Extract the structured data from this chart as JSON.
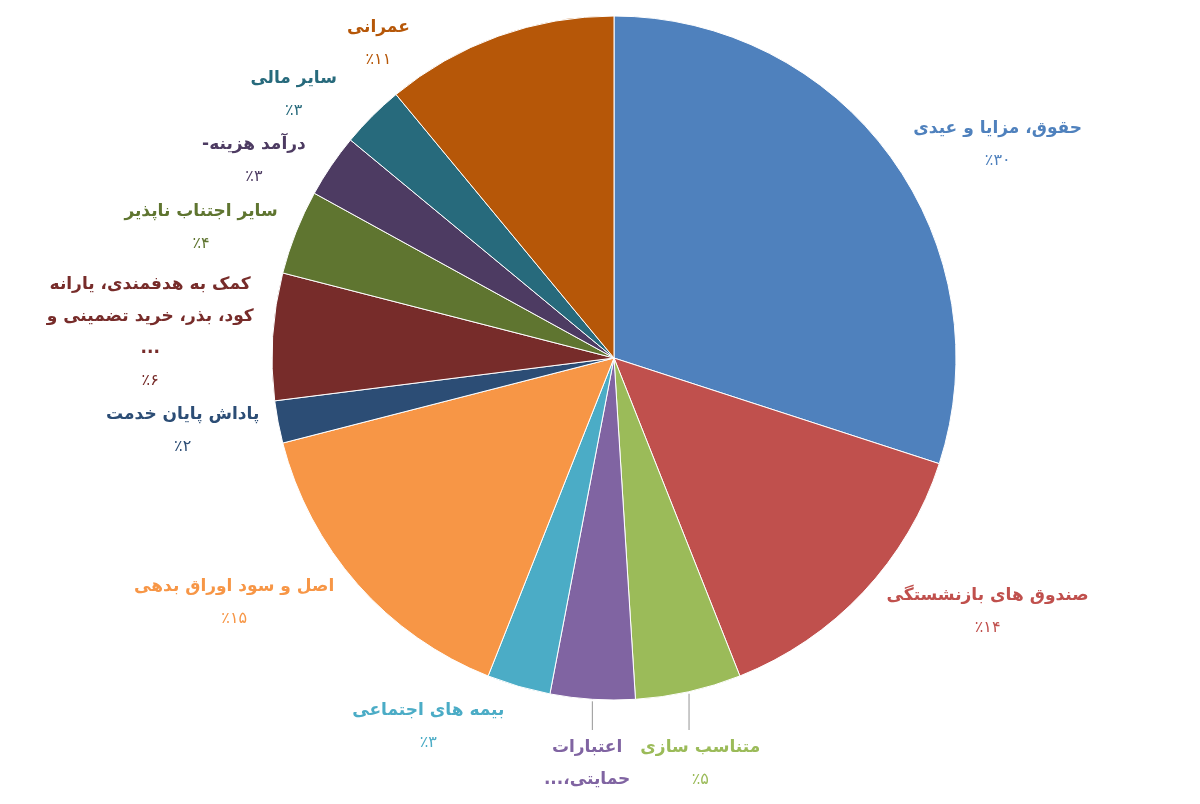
{
  "chart_data": {
    "type": "pie",
    "categories": [
      "حقوق، مزایا و عیدی",
      "صندوق های بازنشستگی",
      "متناسب سازی",
      "اعتبارات حمایتی،...",
      "بیمه های اجتماعی",
      "اصل و سود اوراق بدهی",
      "پاداش پایان خدمت",
      "کمک به هدفمندی، یارانه کود، بذر، خرید تضمینی و ...",
      "سایر اجتناب ناپذیر",
      "درآمد هزینه-",
      "سایر مالی",
      "عمرانی"
    ],
    "values": [
      30,
      14,
      5,
      4,
      3,
      15,
      2,
      6,
      4,
      3,
      3,
      11
    ],
    "colors": [
      "#4f81bd",
      "#c0504d",
      "#9bbb59",
      "#8064a2",
      "#4bacc6",
      "#f79646",
      "#2c4d75",
      "#772c2a",
      "#5f7530",
      "#4d3b62",
      "#276a7c",
      "#b65708"
    ],
    "value_labels": [
      "٪۳۰",
      "٪۱۴",
      "٪۵",
      null,
      "٪۳",
      "٪۱۵",
      "٪۲",
      "٪۶",
      "٪۴",
      "٪۳",
      "٪۳",
      "٪۱۱"
    ]
  }
}
